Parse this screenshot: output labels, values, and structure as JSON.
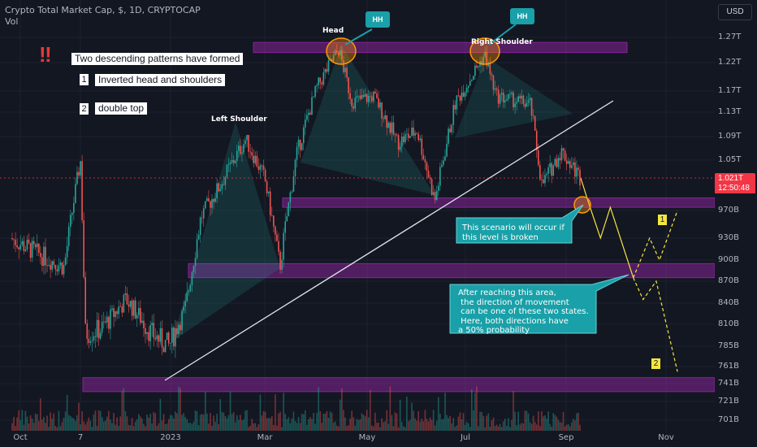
{
  "header": {
    "title": "Crypto Total Market Cap, $, 1D, CRYPTOCAP",
    "vol_label": "Vol",
    "currency": "USD"
  },
  "notes": {
    "headline": "Two descending patterns have formed",
    "item1_num": "1",
    "item1_text": "Inverted head and shoulders",
    "item2_num": "2",
    "item2_text": "double top",
    "warning_icon": "double-exclamation-icon"
  },
  "pattern_labels": {
    "head": "Head",
    "left_shoulder": "Left Shoulder",
    "right_shoulder": "Right Shoulder",
    "hh_badge": "HH"
  },
  "callouts": {
    "scenario": "This scenario will occur if\nthis level is broken",
    "direction": "After reaching this area,\n the direction of movement\n can be one of these two states.\n Here, both directions have\na 50% probability"
  },
  "scenario_badges": [
    "1",
    "2"
  ],
  "current_price": {
    "value": "1.021T",
    "countdown": "12:50:48"
  },
  "colors": {
    "background": "#131722",
    "up": "#26a69a",
    "down": "#ef5350",
    "zone": "#9c27b0",
    "callout": "#19a0a8",
    "scenario_path": "#f5e642",
    "current": "#f23645"
  },
  "chart_data": {
    "type": "candlestick",
    "y_axis_labels": [
      "1.27T",
      "1.22T",
      "1.17T",
      "1.13T",
      "1.09T",
      "1.05T",
      "970B",
      "930B",
      "900B",
      "870B",
      "840B",
      "810B",
      "785B",
      "761B",
      "741B",
      "721B",
      "701B"
    ],
    "x_axis_labels": [
      "Oct",
      "7",
      "2023",
      "Mar",
      "May",
      "Jul",
      "Sep",
      "Nov"
    ],
    "ylim": [
      690,
      1300
    ],
    "close_path": [
      {
        "date": "2022-09-25",
        "value": 930
      },
      {
        "date": "2022-10-15",
        "value": 905
      },
      {
        "date": "2022-10-28",
        "value": 890
      },
      {
        "date": "2022-11-07",
        "value": 1050
      },
      {
        "date": "2022-11-10",
        "value": 800
      },
      {
        "date": "2022-11-20",
        "value": 805
      },
      {
        "date": "2022-12-05",
        "value": 845
      },
      {
        "date": "2022-12-20",
        "value": 800
      },
      {
        "date": "2022-12-31",
        "value": 785
      },
      {
        "date": "2023-01-10",
        "value": 830
      },
      {
        "date": "2023-01-20",
        "value": 960
      },
      {
        "date": "2023-02-01",
        "value": 1010
      },
      {
        "date": "2023-02-17",
        "value": 1085
      },
      {
        "date": "2023-03-01",
        "value": 1020
      },
      {
        "date": "2023-03-10",
        "value": 890
      },
      {
        "date": "2023-03-20",
        "value": 1060
      },
      {
        "date": "2023-04-01",
        "value": 1175
      },
      {
        "date": "2023-04-14",
        "value": 1245
      },
      {
        "date": "2023-04-22",
        "value": 1150
      },
      {
        "date": "2023-05-05",
        "value": 1160
      },
      {
        "date": "2023-05-20",
        "value": 1080
      },
      {
        "date": "2023-06-01",
        "value": 1100
      },
      {
        "date": "2023-06-12",
        "value": 985
      },
      {
        "date": "2023-06-25",
        "value": 1150
      },
      {
        "date": "2023-07-13",
        "value": 1235
      },
      {
        "date": "2023-07-20",
        "value": 1160
      },
      {
        "date": "2023-08-10",
        "value": 1145
      },
      {
        "date": "2023-08-17",
        "value": 1010
      },
      {
        "date": "2023-08-29",
        "value": 1065
      },
      {
        "date": "2023-09-10",
        "value": 1021
      }
    ],
    "zones": [
      {
        "from": 1240,
        "to": 1260
      },
      {
        "from": 975,
        "to": 990
      },
      {
        "from": 875,
        "to": 895
      },
      {
        "from": 732,
        "to": 748
      }
    ],
    "scenario_path_solid": [
      {
        "date": "2023-09-10",
        "value": 1021
      },
      {
        "date": "2023-09-15",
        "value": 980
      },
      {
        "date": "2023-09-22",
        "value": 930
      },
      {
        "date": "2023-09-28",
        "value": 975
      },
      {
        "date": "2023-10-12",
        "value": 875
      }
    ],
    "scenario_1_path": [
      {
        "date": "2023-10-12",
        "value": 875
      },
      {
        "date": "2023-10-22",
        "value": 930
      },
      {
        "date": "2023-10-28",
        "value": 900
      },
      {
        "date": "2023-11-08",
        "value": 970
      }
    ],
    "scenario_2_path": [
      {
        "date": "2023-10-12",
        "value": 875
      },
      {
        "date": "2023-10-18",
        "value": 845
      },
      {
        "date": "2023-10-26",
        "value": 870
      },
      {
        "date": "2023-11-08",
        "value": 755
      }
    ]
  }
}
